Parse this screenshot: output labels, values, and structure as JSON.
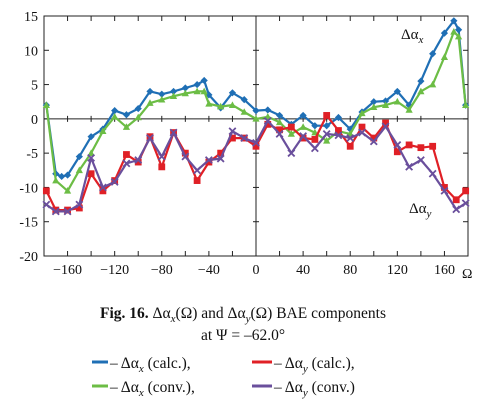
{
  "chart_data": {
    "type": "line",
    "x_unit_label": "Ω",
    "xlim": [
      -180,
      180
    ],
    "ylim": [
      -20,
      15
    ],
    "xticks": [
      -160,
      -120,
      -80,
      -40,
      0,
      40,
      80,
      120,
      160
    ],
    "yticks": [
      -20,
      -15,
      -10,
      -5,
      0,
      5,
      10,
      15
    ],
    "annotations": [
      {
        "text": "Δα",
        "sub": "x",
        "near_series": "dax_calc"
      },
      {
        "text": "Δα",
        "sub": "y",
        "near_series": "day_calc"
      }
    ],
    "series": [
      {
        "key": "dax_calc",
        "color": "#1f6fb5",
        "marker": "diamond",
        "points": [
          [
            -178,
            2
          ],
          [
            -170,
            -8
          ],
          [
            -165,
            -8.4
          ],
          [
            -160,
            -8.2
          ],
          [
            -150,
            -5.5
          ],
          [
            -140,
            -2.6
          ],
          [
            -130,
            -1.5
          ],
          [
            -120,
            1.2
          ],
          [
            -110,
            0.6
          ],
          [
            -100,
            1.5
          ],
          [
            -90,
            4
          ],
          [
            -80,
            3.6
          ],
          [
            -70,
            4
          ],
          [
            -60,
            4.5
          ],
          [
            -50,
            5
          ],
          [
            -44,
            5.6
          ],
          [
            -40,
            3.5
          ],
          [
            -30,
            1.6
          ],
          [
            -20,
            3.8
          ],
          [
            -10,
            2.8
          ],
          [
            0,
            1.2
          ],
          [
            10,
            1.3
          ],
          [
            20,
            0.5
          ],
          [
            30,
            -0.8
          ],
          [
            40,
            0.5
          ],
          [
            50,
            -1
          ],
          [
            60,
            -1
          ],
          [
            70,
            0.2
          ],
          [
            80,
            -1.5
          ],
          [
            90,
            1
          ],
          [
            100,
            2.5
          ],
          [
            110,
            2.6
          ],
          [
            120,
            4
          ],
          [
            130,
            2
          ],
          [
            140,
            5.5
          ],
          [
            150,
            9.5
          ],
          [
            160,
            12.5
          ],
          [
            168,
            14.3
          ],
          [
            172,
            13
          ],
          [
            178,
            2
          ]
        ]
      },
      {
        "key": "dax_conv",
        "color": "#6cbd45",
        "marker": "triangle",
        "points": [
          [
            -178,
            2
          ],
          [
            -170,
            -9
          ],
          [
            -160,
            -10.5
          ],
          [
            -150,
            -7.5
          ],
          [
            -140,
            -5
          ],
          [
            -130,
            -1.8
          ],
          [
            -120,
            0.3
          ],
          [
            -110,
            -1.2
          ],
          [
            -100,
            0.2
          ],
          [
            -90,
            2.3
          ],
          [
            -80,
            2.8
          ],
          [
            -70,
            3.3
          ],
          [
            -60,
            3.7
          ],
          [
            -50,
            4
          ],
          [
            -44,
            4
          ],
          [
            -40,
            2.2
          ],
          [
            -30,
            1.8
          ],
          [
            -20,
            2
          ],
          [
            -10,
            1
          ],
          [
            0,
            0
          ],
          [
            10,
            0.3
          ],
          [
            20,
            -0.5
          ],
          [
            30,
            -2.2
          ],
          [
            40,
            -1.2
          ],
          [
            50,
            -2
          ],
          [
            60,
            -3.2
          ],
          [
            70,
            -1.8
          ],
          [
            80,
            -2.2
          ],
          [
            90,
            0.8
          ],
          [
            100,
            1.7
          ],
          [
            110,
            2
          ],
          [
            120,
            2.5
          ],
          [
            130,
            1.3
          ],
          [
            140,
            4
          ],
          [
            150,
            5
          ],
          [
            160,
            9
          ],
          [
            168,
            12.7
          ],
          [
            172,
            12
          ],
          [
            178,
            2
          ]
        ]
      },
      {
        "key": "day_calc",
        "color": "#e02026",
        "marker": "square",
        "points": [
          [
            -178,
            -10.5
          ],
          [
            -170,
            -13.3
          ],
          [
            -160,
            -13.3
          ],
          [
            -150,
            -13
          ],
          [
            -140,
            -8
          ],
          [
            -130,
            -10.5
          ],
          [
            -120,
            -9
          ],
          [
            -110,
            -5.2
          ],
          [
            -100,
            -6.3
          ],
          [
            -90,
            -2.6
          ],
          [
            -80,
            -7
          ],
          [
            -70,
            -2
          ],
          [
            -60,
            -5
          ],
          [
            -50,
            -9
          ],
          [
            -40,
            -6.3
          ],
          [
            -30,
            -5
          ],
          [
            -20,
            -2.8
          ],
          [
            -10,
            -2.8
          ],
          [
            0,
            -4
          ],
          [
            10,
            -0.8
          ],
          [
            20,
            -1.6
          ],
          [
            30,
            -1.2
          ],
          [
            40,
            -2.8
          ],
          [
            50,
            -3
          ],
          [
            60,
            0.5
          ],
          [
            70,
            -1.7
          ],
          [
            80,
            -4
          ],
          [
            90,
            -1.2
          ],
          [
            100,
            -2.8
          ],
          [
            110,
            -0.6
          ],
          [
            120,
            -4.8
          ],
          [
            130,
            -3.8
          ],
          [
            140,
            -4.2
          ],
          [
            150,
            -4
          ],
          [
            160,
            -10
          ],
          [
            170,
            -11.8
          ],
          [
            178,
            -10.5
          ]
        ]
      },
      {
        "key": "day_conv",
        "color": "#6a4f9c",
        "marker": "x",
        "points": [
          [
            -178,
            -12.5
          ],
          [
            -170,
            -13.5
          ],
          [
            -160,
            -13.5
          ],
          [
            -150,
            -12.5
          ],
          [
            -140,
            -5.7
          ],
          [
            -130,
            -10
          ],
          [
            -120,
            -9.2
          ],
          [
            -110,
            -6.5
          ],
          [
            -100,
            -6
          ],
          [
            -90,
            -2.8
          ],
          [
            -80,
            -5.5
          ],
          [
            -70,
            -2
          ],
          [
            -60,
            -5.5
          ],
          [
            -50,
            -7.5
          ],
          [
            -40,
            -6
          ],
          [
            -30,
            -5.8
          ],
          [
            -20,
            -1.8
          ],
          [
            -10,
            -2.8
          ],
          [
            0,
            -3.5
          ],
          [
            10,
            -0.3
          ],
          [
            20,
            -2.2
          ],
          [
            30,
            -5
          ],
          [
            40,
            -2.5
          ],
          [
            50,
            -4.3
          ],
          [
            60,
            -2.2
          ],
          [
            70,
            -2.4
          ],
          [
            80,
            -2.8
          ],
          [
            90,
            -2
          ],
          [
            100,
            -3.3
          ],
          [
            110,
            -1.1
          ],
          [
            120,
            -3.8
          ],
          [
            130,
            -7
          ],
          [
            140,
            -6
          ],
          [
            150,
            -8
          ],
          [
            160,
            -10.5
          ],
          [
            170,
            -13.2
          ],
          [
            178,
            -12.3
          ]
        ]
      }
    ]
  },
  "caption": {
    "fig_label": "Fig. 16.",
    "line1_part1": "Δα",
    "line1_sub1": "x",
    "line1_part2": "(Ω) and Δα",
    "line1_sub2": "y",
    "line1_part3": "(Ω) BAE components",
    "line2": "at Ψ = –62.0°"
  },
  "legend": [
    {
      "series": "dax_calc",
      "text_main": "– Δα",
      "sub": "x",
      "text_rest": " (calc.),"
    },
    {
      "series": "day_calc",
      "text_main": "– Δα",
      "sub": "y",
      "text_rest": " (calc.),"
    },
    {
      "series": "dax_conv",
      "text_main": "– Δα",
      "sub": "x",
      "text_rest": " (conv.),"
    },
    {
      "series": "day_conv",
      "text_main": "– Δα",
      "sub": "y",
      "text_rest": " (conv.)"
    }
  ]
}
